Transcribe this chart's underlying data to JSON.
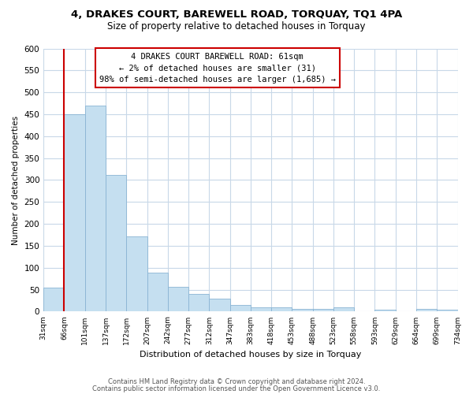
{
  "title": "4, DRAKES COURT, BAREWELL ROAD, TORQUAY, TQ1 4PA",
  "subtitle": "Size of property relative to detached houses in Torquay",
  "xlabel": "Distribution of detached houses by size in Torquay",
  "ylabel": "Number of detached properties",
  "bar_color": "#c5dff0",
  "bar_edge_color": "#8ab4d4",
  "bin_labels": [
    "31sqm",
    "66sqm",
    "101sqm",
    "137sqm",
    "172sqm",
    "207sqm",
    "242sqm",
    "277sqm",
    "312sqm",
    "347sqm",
    "383sqm",
    "418sqm",
    "453sqm",
    "488sqm",
    "523sqm",
    "558sqm",
    "593sqm",
    "629sqm",
    "664sqm",
    "699sqm",
    "734sqm"
  ],
  "bar_heights": [
    55,
    450,
    470,
    312,
    172,
    88,
    57,
    40,
    30,
    15,
    9,
    9,
    6,
    7,
    9,
    1,
    4,
    0,
    6,
    4
  ],
  "red_line_x": 0.5,
  "ylim": [
    0,
    600
  ],
  "yticks": [
    0,
    50,
    100,
    150,
    200,
    250,
    300,
    350,
    400,
    450,
    500,
    550,
    600
  ],
  "annotation_title": "4 DRAKES COURT BAREWELL ROAD: 61sqm",
  "annotation_line1": "← 2% of detached houses are smaller (31)",
  "annotation_line2": "98% of semi-detached houses are larger (1,685) →",
  "footnote1": "Contains HM Land Registry data © Crown copyright and database right 2024.",
  "footnote2": "Contains public sector information licensed under the Open Government Licence v3.0.",
  "grid_color": "#c8d8e8",
  "box_color": "#cc0000"
}
